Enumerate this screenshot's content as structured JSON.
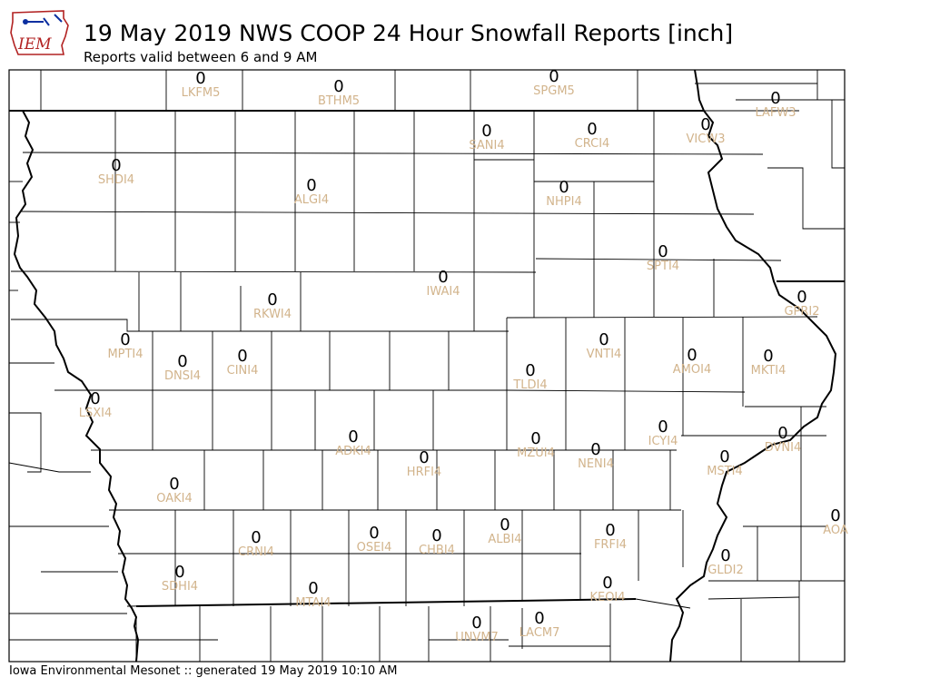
{
  "header": {
    "logo_text": "IEM",
    "title": "19 May 2019 NWS COOP 24 Hour Snowfall Reports [inch]",
    "subtitle": "Reports valid between 6 and 9 AM"
  },
  "footer": {
    "text": "Iowa Environmental Mesonet :: generated 19 May 2019 10:10 AM"
  },
  "colors": {
    "station_label": "#d2b48c",
    "value_text": "#000000",
    "county_line": "#000000",
    "logo_red": "#b22222",
    "logo_blue": "#0b2fa0"
  },
  "stations": [
    {
      "id": "LKFM5",
      "value": "0"
    },
    {
      "id": "BTHM5",
      "value": "0"
    },
    {
      "id": "SPGM5",
      "value": "0"
    },
    {
      "id": "LAFW3",
      "value": "0"
    },
    {
      "id": "VICW3",
      "value": "0"
    },
    {
      "id": "SANI4",
      "value": "0"
    },
    {
      "id": "CRCI4",
      "value": "0"
    },
    {
      "id": "SHDI4",
      "value": "0"
    },
    {
      "id": "ALGI4",
      "value": "0"
    },
    {
      "id": "NHPI4",
      "value": "0"
    },
    {
      "id": "SPTI4",
      "value": "0"
    },
    {
      "id": "IWAI4",
      "value": "0"
    },
    {
      "id": "RKWI4",
      "value": "0"
    },
    {
      "id": "GPRI2",
      "value": "0"
    },
    {
      "id": "MPTI4",
      "value": "0"
    },
    {
      "id": "DNSI4",
      "value": "0"
    },
    {
      "id": "CINI4",
      "value": "0"
    },
    {
      "id": "VNTI4",
      "value": "0"
    },
    {
      "id": "AMOI4",
      "value": "0"
    },
    {
      "id": "MKTI4",
      "value": "0"
    },
    {
      "id": "TLDI4",
      "value": "0"
    },
    {
      "id": "LSXI4",
      "value": "0"
    },
    {
      "id": "ICYI4",
      "value": "0"
    },
    {
      "id": "ADKI4",
      "value": "0"
    },
    {
      "id": "MZUI4",
      "value": "0"
    },
    {
      "id": "NENI4",
      "value": "0"
    },
    {
      "id": "DVNI4",
      "value": "0"
    },
    {
      "id": "HRFI4",
      "value": "0"
    },
    {
      "id": "MSTI4",
      "value": "0"
    },
    {
      "id": "OAKI4",
      "value": "0"
    },
    {
      "id": "AOA",
      "value": "0"
    },
    {
      "id": "CRNI4",
      "value": "0"
    },
    {
      "id": "OSEI4",
      "value": "0"
    },
    {
      "id": "CHBI4",
      "value": "0"
    },
    {
      "id": "ALBI4",
      "value": "0"
    },
    {
      "id": "FRFI4",
      "value": "0"
    },
    {
      "id": "SDHI4",
      "value": "0"
    },
    {
      "id": "GLDI2",
      "value": "0"
    },
    {
      "id": "MTAI4",
      "value": "0"
    },
    {
      "id": "KEOI4",
      "value": "0"
    },
    {
      "id": "UNVM7",
      "value": "0"
    },
    {
      "id": "LACM7",
      "value": "0"
    }
  ]
}
